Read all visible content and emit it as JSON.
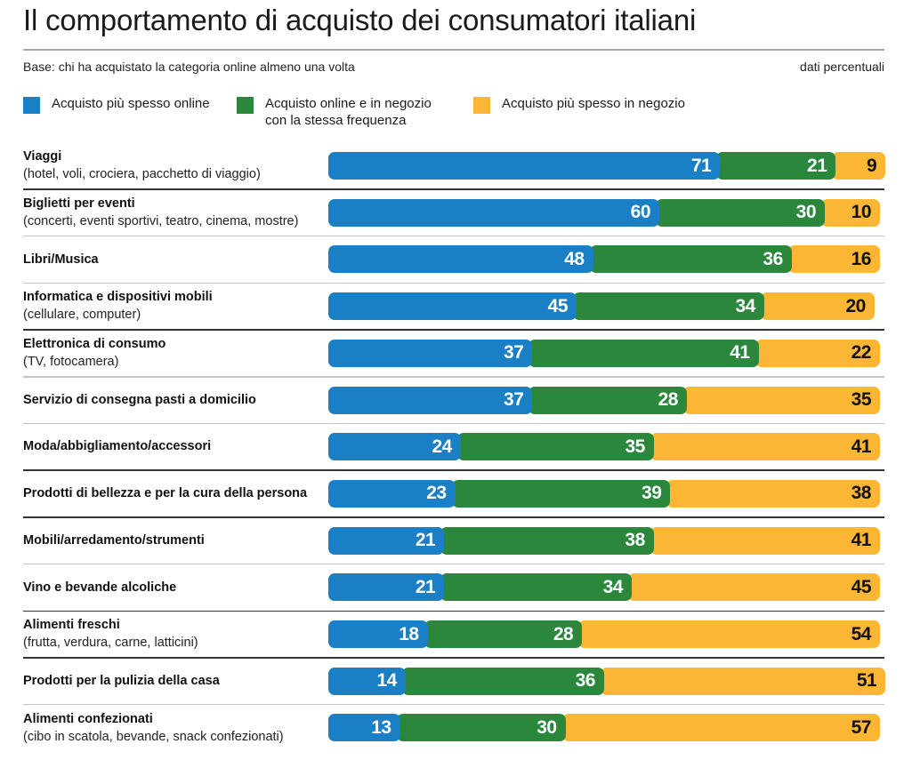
{
  "header": {
    "title": "Il comportamento di acquisto dei consumatori italiani",
    "base_note": "Base: chi ha acquistato la categoria online almeno una volta",
    "units_note": "dati percentuali"
  },
  "colors": {
    "online": "#1a7fc4",
    "both": "#2a873c",
    "store": "#fbb633",
    "separator_dark": "#333333",
    "separator_light": "#c4c4c4"
  },
  "legend": [
    {
      "key": "online",
      "label": "Acquisto più spesso online"
    },
    {
      "key": "both",
      "label": "Acquisto online e in negozio\ncon la stessa frequenza"
    },
    {
      "key": "store",
      "label": "Acquisto più spesso in negozio"
    }
  ],
  "chart_data": {
    "type": "bar",
    "orientation": "horizontal",
    "stacked": true,
    "title": "Il comportamento di acquisto dei consumatori italiani",
    "subtitle": "Base: chi ha acquistato la categoria online almeno una volta",
    "units": "dati percentuali",
    "xlabel": "",
    "ylabel": "",
    "xlim": [
      0,
      100
    ],
    "grid": false,
    "legend_position": "top",
    "categories": [
      {
        "title": "Viaggi",
        "sub": "(hotel, voli, crociera, pacchetto di viaggio)"
      },
      {
        "title": "Biglietti per eventi",
        "sub": "(concerti, eventi sportivi, teatro, cinema, mostre)"
      },
      {
        "title": "Libri/Musica",
        "sub": ""
      },
      {
        "title": "Informatica e dispositivi mobili",
        "sub": "(cellulare, computer)"
      },
      {
        "title": "Elettronica di consumo",
        "sub": "(TV, fotocamera)"
      },
      {
        "title": "Servizio di consegna pasti a domicilio",
        "sub": ""
      },
      {
        "title": "Moda/abbigliamento/accessori",
        "sub": ""
      },
      {
        "title": "Prodotti di bellezza e per la cura della persona",
        "sub": ""
      },
      {
        "title": "Mobili/arredamento/strumenti",
        "sub": ""
      },
      {
        "title": "Vino e bevande alcoliche",
        "sub": ""
      },
      {
        "title": "Alimenti freschi",
        "sub": "(frutta, verdura, carne, latticini)"
      },
      {
        "title": "Prodotti per la pulizia della casa",
        "sub": ""
      },
      {
        "title": "Alimenti confezionati",
        "sub": "(cibo in scatola, bevande, snack confezionati)"
      }
    ],
    "series": [
      {
        "key": "online",
        "name": "Acquisto più spesso online",
        "values": [
          71,
          60,
          48,
          45,
          37,
          37,
          24,
          23,
          21,
          21,
          18,
          14,
          13
        ]
      },
      {
        "key": "both",
        "name": "Acquisto online e in negozio con la stessa frequenza",
        "values": [
          21,
          30,
          36,
          34,
          41,
          28,
          35,
          39,
          38,
          34,
          28,
          36,
          30
        ]
      },
      {
        "key": "store",
        "name": "Acquisto più spesso in negozio",
        "values": [
          9,
          10,
          16,
          20,
          22,
          35,
          41,
          38,
          41,
          45,
          54,
          51,
          57
        ]
      }
    ],
    "separator_styles": [
      "dark",
      "light",
      "light",
      "dark",
      "light",
      "light",
      "dark",
      "dark",
      "light",
      "dark",
      "dark",
      "light"
    ]
  }
}
